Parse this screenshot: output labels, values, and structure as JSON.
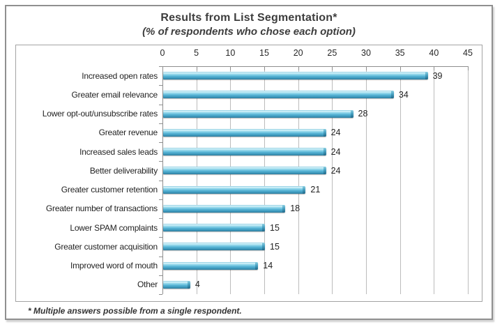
{
  "chart_data": {
    "type": "bar",
    "orientation": "horizontal",
    "title": "Results from List Segmentation*",
    "subtitle": "(% of respondents who chose each option)",
    "footnote": "* Multiple answers possible from a single respondent.",
    "categories": [
      "Increased open rates",
      "Greater email relevance",
      "Lower opt-out/unsubscribe rates",
      "Greater revenue",
      "Increased sales leads",
      "Better deliverability",
      "Greater customer retention",
      "Greater number of transactions",
      "Lower SPAM complaints",
      "Greater customer acquisition",
      "Improved word of mouth",
      "Other"
    ],
    "values": [
      39,
      34,
      28,
      24,
      24,
      24,
      21,
      18,
      15,
      15,
      14,
      4
    ],
    "xlim": [
      0,
      45
    ],
    "x_ticks": [
      0,
      5,
      10,
      15,
      20,
      25,
      30,
      35,
      40,
      45
    ],
    "xlabel": "",
    "ylabel": "",
    "legend": "none",
    "grid": "vertical",
    "value_labels": true,
    "bar_color": "#5bb7d9",
    "bar_color_dark": "#2c7c9e",
    "text_color": "#262626"
  }
}
